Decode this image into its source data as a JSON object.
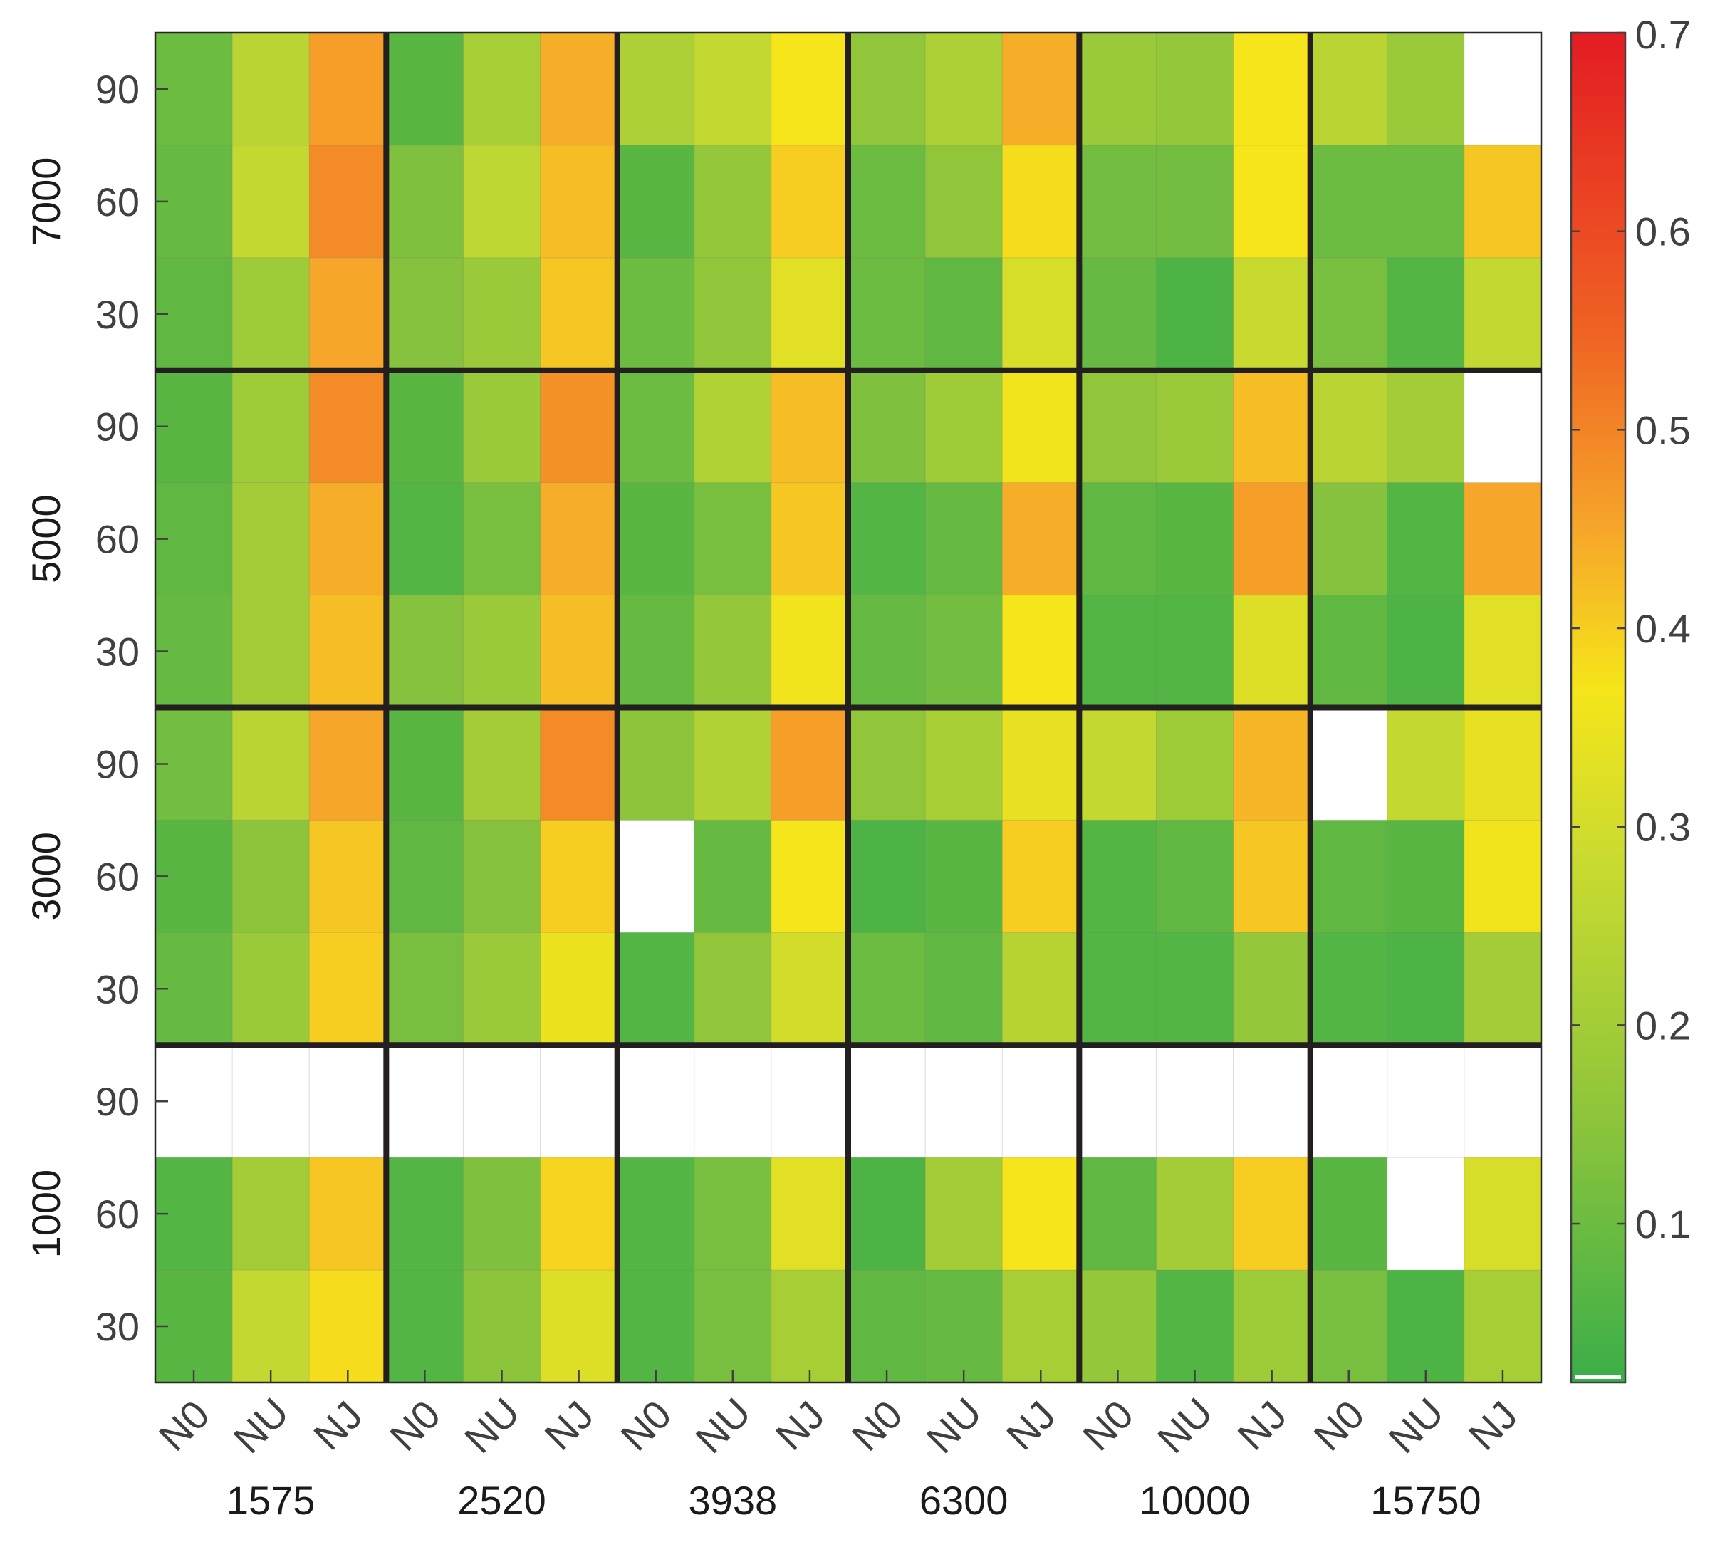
{
  "chart_data": {
    "type": "heatmap",
    "title": "",
    "x_groups": [
      "1575",
      "2520",
      "3938",
      "6300",
      "10000",
      "15750"
    ],
    "x_subcategories": [
      "N0",
      "NU",
      "NJ"
    ],
    "y_groups": [
      "7000",
      "5000",
      "3000",
      "1000"
    ],
    "y_subcategories": [
      "90",
      "60",
      "30"
    ],
    "colorbar": {
      "range": [
        0.02,
        0.7
      ],
      "ticks": [
        "0.1",
        "0.2",
        "0.3",
        "0.4",
        "0.5",
        "0.6",
        "0.7"
      ],
      "tick_values": [
        0.1,
        0.2,
        0.3,
        0.4,
        0.5,
        0.6,
        0.7
      ],
      "colormap": [
        "#3aae48",
        "#8cc43c",
        "#c8da30",
        "#f6e51a",
        "#f6a62a",
        "#ef6223",
        "#e41c23"
      ],
      "colormap_stops": [
        0.02,
        0.15,
        0.28,
        0.37,
        0.45,
        0.55,
        0.7
      ]
    },
    "missing_color": "#ffffff",
    "note_values": "rows listed top to bottom (7000:90,60,30; 5000:90,60,30; 3000:90,60,30; 1000:90,60,30); columns left to right (1575:N0,NU,NJ; 2520:N0,NU,NJ; ...); null = blank cell",
    "values": [
      [
        0.1,
        0.25,
        0.46,
        0.07,
        0.21,
        0.44,
        0.22,
        0.27,
        0.37,
        0.16,
        0.22,
        0.44,
        0.18,
        0.17,
        0.37,
        0.25,
        0.18,
        null
      ],
      [
        0.09,
        0.27,
        0.49,
        0.13,
        0.26,
        0.42,
        0.07,
        0.17,
        0.4,
        0.1,
        0.16,
        0.38,
        0.11,
        0.11,
        0.37,
        0.1,
        0.1,
        0.41
      ],
      [
        0.08,
        0.19,
        0.45,
        0.14,
        0.18,
        0.41,
        0.1,
        0.16,
        0.33,
        0.1,
        0.08,
        0.31,
        0.09,
        0.05,
        0.28,
        0.12,
        0.06,
        0.27
      ],
      [
        0.07,
        0.19,
        0.49,
        0.07,
        0.18,
        0.48,
        0.1,
        0.23,
        0.42,
        0.13,
        0.19,
        0.36,
        0.16,
        0.18,
        0.42,
        0.25,
        0.2,
        null
      ],
      [
        0.08,
        0.2,
        0.44,
        0.06,
        0.12,
        0.44,
        0.07,
        0.12,
        0.41,
        0.06,
        0.09,
        0.44,
        0.08,
        0.07,
        0.46,
        0.14,
        0.06,
        0.45
      ],
      [
        0.09,
        0.2,
        0.42,
        0.14,
        0.18,
        0.42,
        0.09,
        0.17,
        0.36,
        0.09,
        0.11,
        0.37,
        0.06,
        0.06,
        0.32,
        0.08,
        0.05,
        0.33
      ],
      [
        0.11,
        0.25,
        0.45,
        0.07,
        0.2,
        0.49,
        0.15,
        0.23,
        0.46,
        0.16,
        0.21,
        0.34,
        0.27,
        0.19,
        0.43,
        null,
        0.27,
        0.34
      ],
      [
        0.07,
        0.15,
        0.41,
        0.08,
        0.14,
        0.4,
        null,
        0.09,
        0.37,
        0.05,
        0.07,
        0.4,
        0.06,
        0.08,
        0.41,
        0.08,
        0.07,
        0.36
      ],
      [
        0.09,
        0.18,
        0.4,
        0.12,
        0.18,
        0.35,
        0.06,
        0.16,
        0.3,
        0.1,
        0.08,
        0.24,
        0.06,
        0.06,
        0.17,
        0.06,
        0.05,
        0.2
      ],
      [
        null,
        null,
        null,
        null,
        null,
        null,
        null,
        null,
        null,
        null,
        null,
        null,
        null,
        null,
        null,
        null,
        null,
        null
      ],
      [
        0.06,
        0.2,
        0.41,
        0.06,
        0.13,
        0.39,
        0.06,
        0.12,
        0.33,
        0.05,
        0.2,
        0.37,
        0.08,
        0.2,
        0.4,
        0.07,
        null,
        0.31
      ],
      [
        0.07,
        0.27,
        0.38,
        0.06,
        0.15,
        0.32,
        0.06,
        0.12,
        0.21,
        0.08,
        0.09,
        0.21,
        0.17,
        0.06,
        0.19,
        0.12,
        0.05,
        0.21
      ]
    ]
  }
}
